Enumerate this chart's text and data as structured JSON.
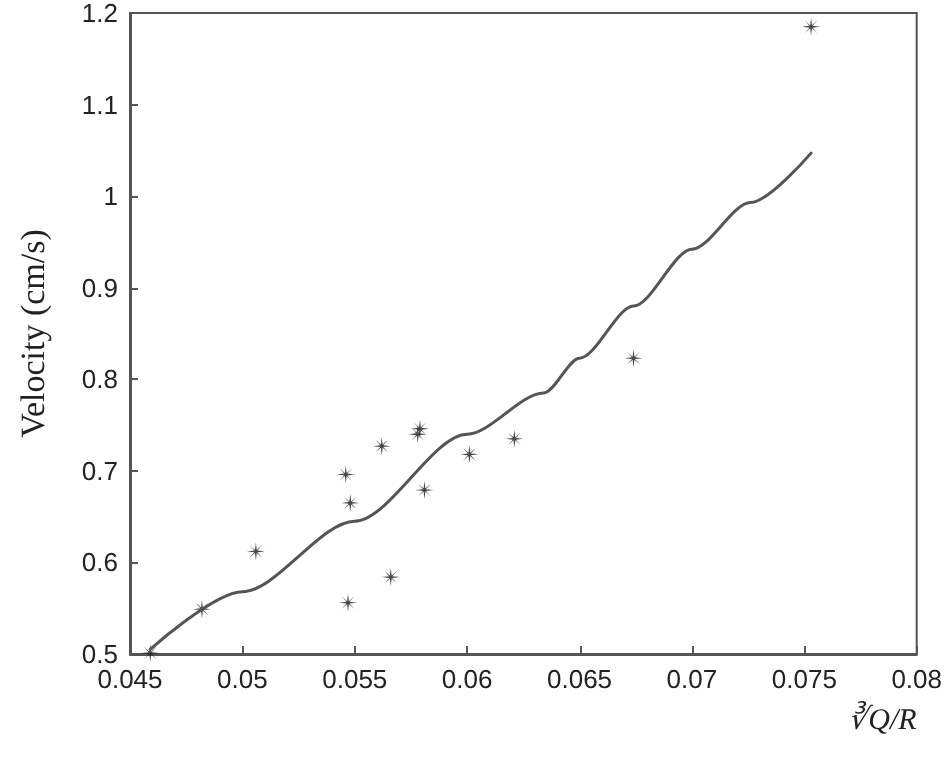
{
  "chart_data": {
    "type": "scatter",
    "xlabel": "∛Q/R",
    "ylabel": "Velocity (cm/s)",
    "xlim": [
      0.045,
      0.08
    ],
    "xticks": [
      0.045,
      0.05,
      0.055,
      0.06,
      0.065,
      0.07,
      0.075,
      0.08
    ],
    "ylim": [
      0.5,
      1.2
    ],
    "yticks": [
      0.5,
      0.6,
      0.7,
      0.8,
      0.9,
      1,
      1.1,
      1.2
    ],
    "grid": false,
    "series": [
      {
        "marker": "star",
        "color": "#1a1a1a",
        "x": [
          0.0459,
          0.0482,
          0.0506,
          0.0546,
          0.0548,
          0.0547,
          0.0562,
          0.0566,
          0.0578,
          0.0579,
          0.0581,
          0.0601,
          0.0621,
          0.0674,
          0.0753
        ],
        "values": [
          0.501,
          0.549,
          0.612,
          0.696,
          0.665,
          0.556,
          0.727,
          0.584,
          0.74,
          0.746,
          0.679,
          0.718,
          0.735,
          0.823,
          1.185
        ]
      },
      {
        "type": "line",
        "marker": "none",
        "line_style": "solid",
        "color": "#555555",
        "x": [
          0.0459,
          0.05,
          0.055,
          0.06,
          0.0634,
          0.065,
          0.0674,
          0.07,
          0.0726,
          0.0753
        ],
        "values": [
          0.505,
          0.568,
          0.645,
          0.74,
          0.785,
          0.823,
          0.88,
          0.942,
          0.993,
          1.047
        ]
      }
    ]
  }
}
